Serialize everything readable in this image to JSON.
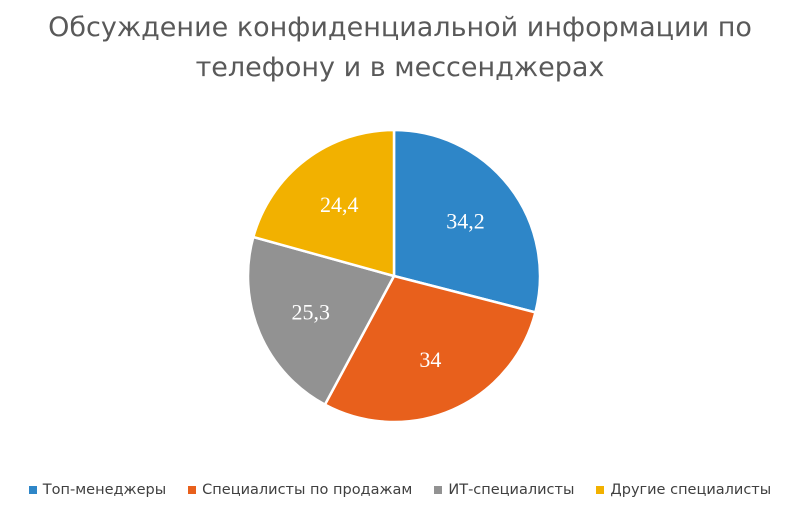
{
  "chart_data": {
    "type": "pie",
    "title_lines": [
      "Обсуждение конфиденциальной информации по",
      "телефону и в мессенджерах"
    ],
    "categories": [
      "Топ-менеджеры",
      "Специалисты по продажам",
      "ИТ-специалисты",
      "Другие специалисты"
    ],
    "values": [
      34.2,
      34,
      25.3,
      24.4
    ],
    "data_labels": [
      "34,2",
      "34",
      "25,3",
      "24,4"
    ],
    "colors": [
      "#2E86C8",
      "#E8601C",
      "#929292",
      "#F2B100"
    ],
    "legend_position": "bottom"
  }
}
